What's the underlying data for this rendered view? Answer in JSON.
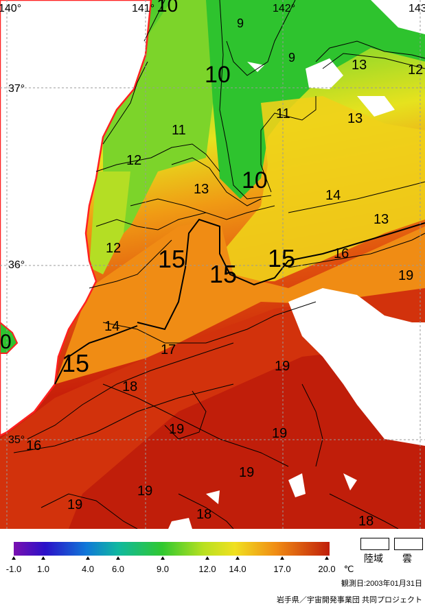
{
  "map": {
    "lon_labels": [
      "140°",
      "141°",
      "142°",
      "143°"
    ],
    "lat_labels": [
      "37°",
      "36°",
      "35°"
    ],
    "contour_labels": [
      "10",
      "9",
      "142°",
      "9",
      "10",
      "13",
      "12",
      "11",
      "13",
      "11",
      "12",
      "10",
      "13",
      "14",
      "13",
      "12",
      "15",
      "15",
      "15",
      "16",
      "19",
      "14",
      "17",
      "15",
      "18",
      "19",
      "19",
      "19",
      "16",
      "19",
      "19",
      "19",
      "18",
      "18",
      "0"
    ]
  },
  "legend": {
    "ticks": [
      "-1.0",
      "1.0",
      "4.0",
      "6.0",
      "9.0",
      "12.0",
      "14.0",
      "17.0",
      "20.0"
    ],
    "unit": "℃",
    "land_label": "陸域",
    "cloud_label": "雲",
    "observation_date": "観測日:2003年01月31日",
    "credit": "岩手県／宇宙開発事業団 共同プロジェクト",
    "colors": {
      "land_coast": "#ff2020",
      "t10": "#2ec32e",
      "t13": "#c8e61e",
      "t15": "#f08c14",
      "t19": "#c81e0a"
    }
  }
}
